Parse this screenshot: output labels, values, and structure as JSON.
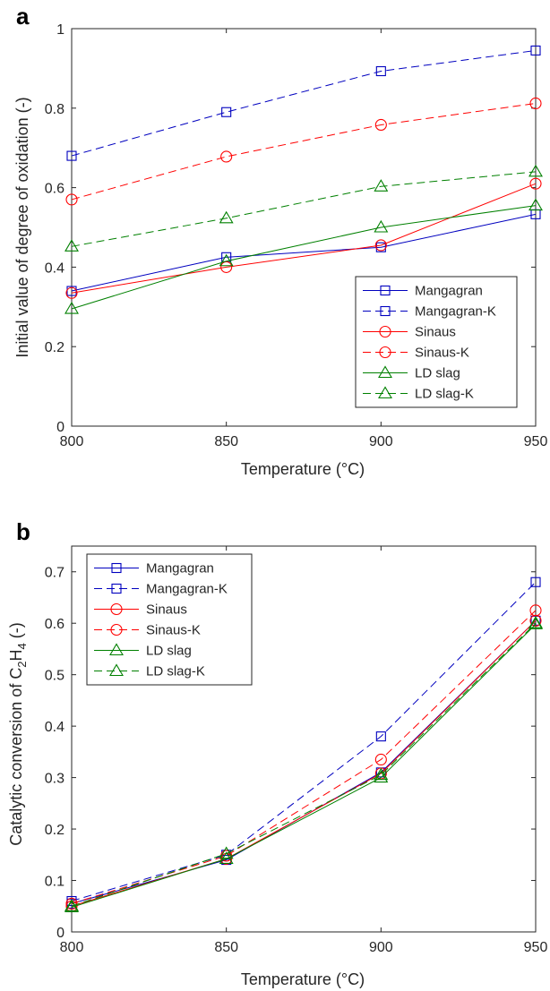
{
  "panels": [
    {
      "letter": "a"
    },
    {
      "letter": "b"
    }
  ],
  "chart_data": [
    {
      "type": "line",
      "x": [
        800,
        850,
        900,
        950
      ],
      "xlabel": "Temperature (°C)",
      "ylabel": "Initial value of degree of oxidation (-)",
      "xlim": [
        800,
        950
      ],
      "ylim": [
        0,
        1
      ],
      "xticks": [
        "800",
        "850",
        "900",
        "950"
      ],
      "yticks": [
        "0",
        "0.2",
        "0.4",
        "0.6",
        "0.8",
        "1"
      ],
      "grid": false,
      "legend_position": "bottom-right",
      "series": [
        {
          "name": "Mangagran",
          "values": [
            0.34,
            0.425,
            0.45,
            0.533
          ],
          "color": "#0000bf",
          "dash": "solid",
          "marker": "square"
        },
        {
          "name": "Mangagran-K",
          "values": [
            0.68,
            0.79,
            0.893,
            0.945
          ],
          "color": "#0000bf",
          "dash": "dashed",
          "marker": "square"
        },
        {
          "name": "Sinaus",
          "values": [
            0.335,
            0.4,
            0.455,
            0.61
          ],
          "color": "#ff0000",
          "dash": "solid",
          "marker": "circle"
        },
        {
          "name": "Sinaus-K",
          "values": [
            0.57,
            0.678,
            0.758,
            0.812
          ],
          "color": "#ff0000",
          "dash": "dashed",
          "marker": "circle"
        },
        {
          "name": "LD slag",
          "values": [
            0.295,
            0.415,
            0.5,
            0.555
          ],
          "color": "#008000",
          "dash": "solid",
          "marker": "triangle"
        },
        {
          "name": "LD slag-K",
          "values": [
            0.452,
            0.523,
            0.603,
            0.64
          ],
          "color": "#008000",
          "dash": "dashed",
          "marker": "triangle"
        }
      ]
    },
    {
      "type": "line",
      "x": [
        800,
        850,
        900,
        950
      ],
      "xlabel": "Temperature (°C)",
      "ylabel_main": "Catalytic conversion of C",
      "ylabel_sub1": "2",
      "ylabel_mid": "H",
      "ylabel_sub2": "4",
      "ylabel_tail": " (-)",
      "xlim": [
        800,
        950
      ],
      "ylim": [
        0,
        0.75
      ],
      "xticks": [
        "800",
        "850",
        "900",
        "950"
      ],
      "yticks": [
        "0",
        "0.1",
        "0.2",
        "0.3",
        "0.4",
        "0.5",
        "0.6",
        "0.7"
      ],
      "grid": false,
      "legend_position": "top-left",
      "series": [
        {
          "name": "Mangagran",
          "values": [
            0.055,
            0.14,
            0.31,
            0.605
          ],
          "color": "#0000bf",
          "dash": "solid",
          "marker": "square"
        },
        {
          "name": "Mangagran-K",
          "values": [
            0.06,
            0.15,
            0.38,
            0.68
          ],
          "color": "#0000bf",
          "dash": "dashed",
          "marker": "square"
        },
        {
          "name": "Sinaus",
          "values": [
            0.05,
            0.142,
            0.308,
            0.605
          ],
          "color": "#ff0000",
          "dash": "solid",
          "marker": "circle"
        },
        {
          "name": "Sinaus-K",
          "values": [
            0.055,
            0.148,
            0.335,
            0.625
          ],
          "color": "#ff0000",
          "dash": "dashed",
          "marker": "circle"
        },
        {
          "name": "LD slag",
          "values": [
            0.048,
            0.142,
            0.3,
            0.598
          ],
          "color": "#008000",
          "dash": "solid",
          "marker": "triangle"
        },
        {
          "name": "LD slag-K",
          "values": [
            0.05,
            0.152,
            0.305,
            0.6
          ],
          "color": "#008000",
          "dash": "dashed",
          "marker": "triangle"
        }
      ]
    }
  ]
}
